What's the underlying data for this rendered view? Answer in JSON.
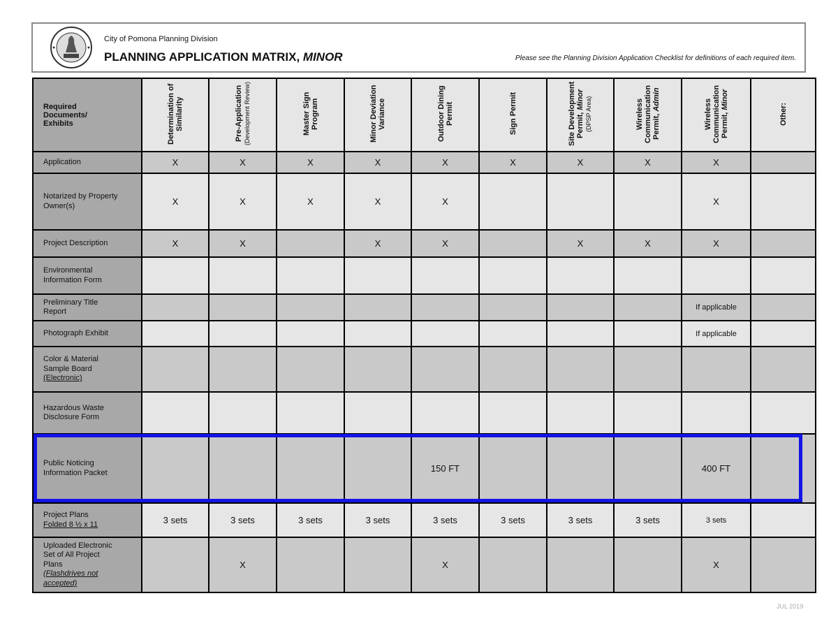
{
  "header": {
    "organization": "City of Pomona Planning Division",
    "title": "PLANNING APPLICATION MATRIX,",
    "title_emphasis": "MINOR",
    "note": "Please see the Planning Division Application Checklist for definitions of each required item.",
    "seal_text": "CITY OF POMONA · INCORPORATED JAN. 1888"
  },
  "matrix": {
    "corner_label": [
      "Required",
      "Documents/",
      "Exhibits"
    ],
    "columns": [
      {
        "main": "Determination of Similarity"
      },
      {
        "main": "Pre-Application",
        "sub": "(Development Review)"
      },
      {
        "main": "Master Sign Program"
      },
      {
        "main": "Minor Deviation Variance"
      },
      {
        "main": "Outdoor Dining Permit"
      },
      {
        "main": "Sign Permit"
      },
      {
        "main": "Site Development Permit,",
        "em": "Minor",
        "sub": "(DPSP Area)"
      },
      {
        "main": "Wireless Communication Permit,",
        "em": "Admin"
      },
      {
        "main": "Wireless Communication Permit,",
        "em": "Minor"
      },
      {
        "main": "Other:"
      }
    ],
    "rows": [
      {
        "label": "Application",
        "cells": [
          "X",
          "X",
          "X",
          "X",
          "X",
          "X",
          "X",
          "X",
          "X",
          ""
        ]
      },
      {
        "label": "Notarized by Property Owner(s)",
        "cells": [
          "X",
          "X",
          "X",
          "X",
          "X",
          "",
          "",
          "",
          "X",
          ""
        ]
      },
      {
        "label": "Project Description",
        "cells": [
          "X",
          "X",
          "",
          "X",
          "X",
          "",
          "X",
          "X",
          "X",
          ""
        ]
      },
      {
        "label": "Environmental Information Form",
        "cells": [
          "",
          "",
          "",
          "",
          "",
          "",
          "",
          "",
          "",
          ""
        ]
      },
      {
        "label": "Preliminary Title Report",
        "cells": [
          "",
          "",
          "",
          "",
          "",
          "",
          "",
          "",
          "If applicable",
          ""
        ]
      },
      {
        "label": "Photograph Exhibit",
        "cells": [
          "",
          "",
          "",
          "",
          "",
          "",
          "",
          "",
          "If applicable",
          ""
        ]
      },
      {
        "label": "Color & Material Sample Board",
        "note": "(Electronic)",
        "cells": [
          "",
          "",
          "",
          "",
          "",
          "",
          "",
          "",
          "",
          ""
        ]
      },
      {
        "label": "Hazardous Waste Disclosure Form",
        "cells": [
          "",
          "",
          "",
          "",
          "",
          "",
          "",
          "",
          "",
          ""
        ]
      },
      {
        "label": "Public Noticing Information Packet",
        "highlighted": true,
        "cells": [
          "",
          "",
          "",
          "",
          "150 FT",
          "",
          "",
          "",
          "400 FT",
          ""
        ]
      },
      {
        "label": "Project Plans",
        "note": "Folded 8 ½ x 11",
        "cells": [
          "3 sets",
          "3 sets",
          "3 sets",
          "3 sets",
          "3 sets",
          "3 sets",
          "3 sets",
          "3 sets",
          "3  sets",
          ""
        ]
      },
      {
        "label": "Uploaded Electronic Set of All Project Plans",
        "note_italic": "(Flashdrives not accepted)",
        "cells": [
          "",
          "X",
          "",
          "",
          "X",
          "",
          "",
          "",
          "X",
          ""
        ]
      }
    ]
  },
  "footer": {
    "date": "JUL 2019"
  },
  "colors": {
    "highlight": "#1414e6",
    "label_bg": "#a8a8a8",
    "row_dark": "#c9c9c9",
    "row_light": "#e6e6e6"
  }
}
